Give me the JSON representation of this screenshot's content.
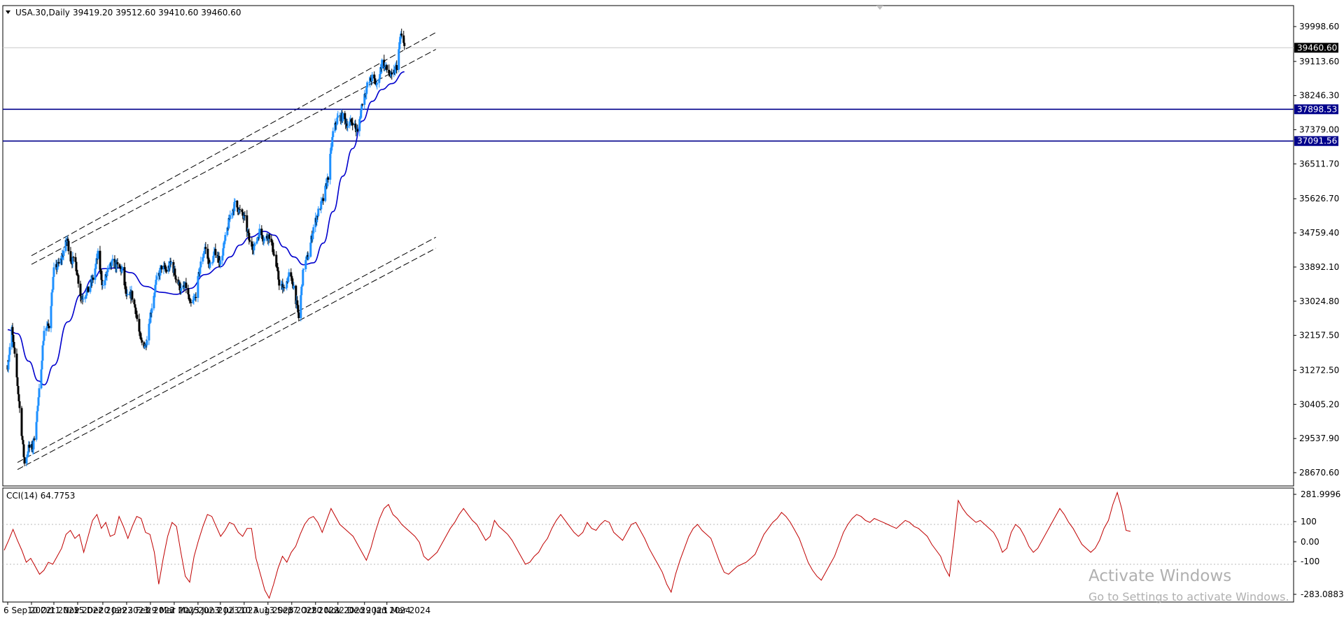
{
  "header": {
    "symbol": "USA.30,Daily",
    "ohlc": "39419.20 39512.60 39410.60 39460.60"
  },
  "indicator": {
    "label": "CCI(14) 64.7753",
    "ticks": [
      "281.9996",
      "100",
      "0.00",
      "-100",
      "-283.0883"
    ],
    "tick_values": [
      281.9996,
      100,
      0,
      -100,
      -283.0883
    ]
  },
  "watermark": {
    "line1": "Activate Windows",
    "line2": "Go to Settings to activate Windows."
  },
  "colors": {
    "bull_candle": "#1E90FF",
    "bear_candle": "#000000",
    "moving_average": "#0000CD",
    "horizontal_levels": "#00008B",
    "channel_lines": "#000000",
    "cci_line": "#C00000",
    "price_label_bg": "#000000"
  },
  "chart_data": {
    "type": "candlestick",
    "symbol": "USA.30",
    "timeframe": "Daily",
    "ylim": [
      28200,
      40600
    ],
    "y_ticks": [
      39998.6,
      39113.6,
      38246.3,
      37379.0,
      36511.7,
      35626.7,
      34759.4,
      33892.1,
      33024.8,
      32157.5,
      31272.5,
      30405.2,
      29537.9,
      28670.6
    ],
    "y_tick_labels": [
      "39998.60",
      "39113.60",
      "38246.30",
      "37379.00",
      "36511.70",
      "35626.70",
      "34759.40",
      "33892.10",
      "33024.80",
      "32157.50",
      "31272.50",
      "30405.20",
      "29537.90",
      "28670.60"
    ],
    "x_labels": [
      "6 Sep 2022",
      "10 Oct 2022",
      "11 Nov 2022",
      "15 Dec 2022",
      "20 Jan 2023",
      "23 Feb 2023",
      "29 Mar 2023",
      "2 May 2023",
      "5 Jun 2023",
      "7 Jul 2023",
      "10 Aug 2023",
      "13 Sep 2023",
      "17 Oct 2023",
      "20 Nov 2023",
      "22 Dec 2023",
      "29 Jan 2024",
      "1 Mar 2024"
    ],
    "current_price": 39460.6,
    "current_price_label": "39460.60",
    "horizontal_levels": [
      {
        "value": 37898.53,
        "label": "37898.53"
      },
      {
        "value": 37091.56,
        "label": "37091.56"
      }
    ],
    "close_path": [
      {
        "date": "2022-09-06",
        "close": 31400
      },
      {
        "date": "2022-09-12",
        "close": 32300
      },
      {
        "date": "2022-09-20",
        "close": 30900
      },
      {
        "date": "2022-09-30",
        "close": 28900
      },
      {
        "date": "2022-10-06",
        "close": 29300
      },
      {
        "date": "2022-10-12",
        "close": 29300
      },
      {
        "date": "2022-10-20",
        "close": 30500
      },
      {
        "date": "2022-10-28",
        "close": 32300
      },
      {
        "date": "2022-11-04",
        "close": 32400
      },
      {
        "date": "2022-11-11",
        "close": 33800
      },
      {
        "date": "2022-11-20",
        "close": 34000
      },
      {
        "date": "2022-11-30",
        "close": 34600
      },
      {
        "date": "2022-12-05",
        "close": 34100
      },
      {
        "date": "2022-12-12",
        "close": 34000
      },
      {
        "date": "2022-12-20",
        "close": 33100
      },
      {
        "date": "2022-12-30",
        "close": 33300
      },
      {
        "date": "2023-01-06",
        "close": 33600
      },
      {
        "date": "2023-01-13",
        "close": 34200
      },
      {
        "date": "2023-01-20",
        "close": 33400
      },
      {
        "date": "2023-01-27",
        "close": 33800
      },
      {
        "date": "2023-02-03",
        "close": 34000
      },
      {
        "date": "2023-02-10",
        "close": 33900
      },
      {
        "date": "2023-02-17",
        "close": 33800
      },
      {
        "date": "2023-02-23",
        "close": 33100
      },
      {
        "date": "2023-03-02",
        "close": 33200
      },
      {
        "date": "2023-03-08",
        "close": 32800
      },
      {
        "date": "2023-03-15",
        "close": 32000
      },
      {
        "date": "2023-03-22",
        "close": 31900
      },
      {
        "date": "2023-03-29",
        "close": 32700
      },
      {
        "date": "2023-04-06",
        "close": 33500
      },
      {
        "date": "2023-04-14",
        "close": 33900
      },
      {
        "date": "2023-04-21",
        "close": 33800
      },
      {
        "date": "2023-04-28",
        "close": 34000
      },
      {
        "date": "2023-05-05",
        "close": 33600
      },
      {
        "date": "2023-05-12",
        "close": 33300
      },
      {
        "date": "2023-05-19",
        "close": 33400
      },
      {
        "date": "2023-05-25",
        "close": 32900
      },
      {
        "date": "2023-06-01",
        "close": 33100
      },
      {
        "date": "2023-06-08",
        "close": 33900
      },
      {
        "date": "2023-06-15",
        "close": 34400
      },
      {
        "date": "2023-06-22",
        "close": 33900
      },
      {
        "date": "2023-06-30",
        "close": 34300
      },
      {
        "date": "2023-07-07",
        "close": 34000
      },
      {
        "date": "2023-07-14",
        "close": 34600
      },
      {
        "date": "2023-07-21",
        "close": 35200
      },
      {
        "date": "2023-07-28",
        "close": 35500
      },
      {
        "date": "2023-08-04",
        "close": 35300
      },
      {
        "date": "2023-08-11",
        "close": 35100
      },
      {
        "date": "2023-08-18",
        "close": 34500
      },
      {
        "date": "2023-08-25",
        "close": 34400
      },
      {
        "date": "2023-09-01",
        "close": 34800
      },
      {
        "date": "2023-09-08",
        "close": 34600
      },
      {
        "date": "2023-09-15",
        "close": 34700
      },
      {
        "date": "2023-09-22",
        "close": 34200
      },
      {
        "date": "2023-09-29",
        "close": 33500
      },
      {
        "date": "2023-10-06",
        "close": 33300
      },
      {
        "date": "2023-10-13",
        "close": 33700
      },
      {
        "date": "2023-10-20",
        "close": 33400
      },
      {
        "date": "2023-10-27",
        "close": 32600
      },
      {
        "date": "2023-11-03",
        "close": 33900
      },
      {
        "date": "2023-11-10",
        "close": 34200
      },
      {
        "date": "2023-11-17",
        "close": 34900
      },
      {
        "date": "2023-11-24",
        "close": 35300
      },
      {
        "date": "2023-12-01",
        "close": 35600
      },
      {
        "date": "2023-12-08",
        "close": 36200
      },
      {
        "date": "2023-12-15",
        "close": 37300
      },
      {
        "date": "2023-12-22",
        "close": 37700
      },
      {
        "date": "2023-12-29",
        "close": 37700
      },
      {
        "date": "2024-01-05",
        "close": 37500
      },
      {
        "date": "2024-01-12",
        "close": 37600
      },
      {
        "date": "2024-01-19",
        "close": 37300
      },
      {
        "date": "2024-01-26",
        "close": 38100
      },
      {
        "date": "2024-02-02",
        "close": 38500
      },
      {
        "date": "2024-02-09",
        "close": 38700
      },
      {
        "date": "2024-02-16",
        "close": 38500
      },
      {
        "date": "2024-02-23",
        "close": 39100
      },
      {
        "date": "2024-03-01",
        "close": 38900
      },
      {
        "date": "2024-03-08",
        "close": 38700
      },
      {
        "date": "2024-03-15",
        "close": 39000
      },
      {
        "date": "2024-03-21",
        "close": 39800
      },
      {
        "date": "2024-03-26",
        "close": 39460
      }
    ],
    "moving_average": [
      {
        "date": "2022-09-06",
        "value": 32300
      },
      {
        "date": "2022-09-20",
        "value": 32200
      },
      {
        "date": "2022-10-06",
        "value": 31500
      },
      {
        "date": "2022-10-20",
        "value": 31000
      },
      {
        "date": "2022-10-28",
        "value": 30900
      },
      {
        "date": "2022-11-11",
        "value": 31400
      },
      {
        "date": "2022-12-01",
        "value": 32500
      },
      {
        "date": "2022-12-20",
        "value": 33200
      },
      {
        "date": "2023-01-06",
        "value": 33600
      },
      {
        "date": "2023-01-20",
        "value": 33850
      },
      {
        "date": "2023-02-10",
        "value": 33870
      },
      {
        "date": "2023-03-01",
        "value": 33750
      },
      {
        "date": "2023-03-22",
        "value": 33400
      },
      {
        "date": "2023-04-14",
        "value": 33250
      },
      {
        "date": "2023-05-05",
        "value": 33200
      },
      {
        "date": "2023-05-25",
        "value": 33350
      },
      {
        "date": "2023-06-15",
        "value": 33700
      },
      {
        "date": "2023-07-07",
        "value": 33900
      },
      {
        "date": "2023-07-21",
        "value": 34150
      },
      {
        "date": "2023-08-04",
        "value": 34450
      },
      {
        "date": "2023-08-18",
        "value": 34650
      },
      {
        "date": "2023-09-08",
        "value": 34800
      },
      {
        "date": "2023-09-22",
        "value": 34700
      },
      {
        "date": "2023-10-06",
        "value": 34400
      },
      {
        "date": "2023-10-20",
        "value": 34150
      },
      {
        "date": "2023-11-03",
        "value": 33950
      },
      {
        "date": "2023-11-17",
        "value": 34000
      },
      {
        "date": "2023-12-01",
        "value": 34500
      },
      {
        "date": "2023-12-15",
        "value": 35300
      },
      {
        "date": "2023-12-29",
        "value": 36200
      },
      {
        "date": "2024-01-12",
        "value": 36900
      },
      {
        "date": "2024-01-26",
        "value": 37600
      },
      {
        "date": "2024-02-09",
        "value": 38100
      },
      {
        "date": "2024-02-23",
        "value": 38400
      },
      {
        "date": "2024-03-08",
        "value": 38550
      },
      {
        "date": "2024-03-26",
        "value": 38850
      }
    ],
    "channel_lines": [
      {
        "start": {
          "date": "2022-10-10",
          "value": 34180
        },
        "end": {
          "date": "2024-05-10",
          "value": 39850
        }
      },
      {
        "start": {
          "date": "2022-10-10",
          "value": 33960
        },
        "end": {
          "date": "2024-05-10",
          "value": 39420
        }
      },
      {
        "start": {
          "date": "2022-09-20",
          "value": 28930
        },
        "end": {
          "date": "2024-05-10",
          "value": 34650
        }
      },
      {
        "start": {
          "date": "2022-09-20",
          "value": 28750
        },
        "end": {
          "date": "2024-05-10",
          "value": 34370
        }
      }
    ],
    "cci": {
      "ylim": [
        -283.0883,
        281.9996
      ],
      "values": [
        -30,
        20,
        75,
        20,
        -30,
        -90,
        -70,
        -110,
        -150,
        -130,
        -90,
        -100,
        -60,
        -20,
        50,
        70,
        30,
        50,
        -40,
        40,
        120,
        150,
        80,
        110,
        40,
        50,
        140,
        90,
        30,
        90,
        140,
        130,
        60,
        50,
        -40,
        -200,
        -70,
        40,
        110,
        90,
        -40,
        -160,
        -190,
        -60,
        20,
        90,
        150,
        140,
        90,
        40,
        70,
        110,
        100,
        60,
        40,
        80,
        80,
        -70,
        -150,
        -230,
        -270,
        -200,
        -120,
        -60,
        -90,
        -40,
        -10,
        50,
        100,
        130,
        140,
        110,
        60,
        120,
        180,
        140,
        100,
        80,
        60,
        40,
        0,
        -40,
        -80,
        -20,
        60,
        130,
        180,
        200,
        150,
        130,
        100,
        80,
        60,
        40,
        10,
        -60,
        -80,
        -60,
        -40,
        0,
        40,
        80,
        110,
        150,
        180,
        150,
        120,
        100,
        60,
        20,
        40,
        120,
        90,
        70,
        50,
        20,
        -20,
        -60,
        -100,
        -90,
        -60,
        -40,
        0,
        30,
        80,
        120,
        150,
        120,
        90,
        60,
        40,
        60,
        110,
        80,
        70,
        100,
        120,
        110,
        60,
        40,
        20,
        60,
        100,
        110,
        70,
        30,
        -20,
        -60,
        -100,
        -140,
        -200,
        -240,
        -150,
        -80,
        -20,
        40,
        80,
        100,
        70,
        50,
        30,
        -30,
        -90,
        -140,
        -150,
        -130,
        -110,
        -100,
        -90,
        -70,
        -50,
        0,
        50,
        80,
        110,
        130,
        160,
        140,
        110,
        70,
        30,
        -30,
        -90,
        -130,
        -160,
        -180,
        -140,
        -100,
        -60,
        0,
        60,
        100,
        130,
        150,
        140,
        120,
        110,
        130,
        120,
        110,
        100,
        90,
        80,
        100,
        120,
        110,
        90,
        80,
        60,
        40,
        0,
        -30,
        -60,
        -120,
        -160,
        20,
        220,
        180,
        150,
        130,
        110,
        120,
        100,
        80,
        60,
        20,
        -40,
        -20,
        60,
        100,
        80,
        40,
        -10,
        -40,
        -20,
        20,
        60,
        100,
        140,
        180,
        150,
        110,
        80,
        40,
        0,
        -20,
        -40,
        -20,
        20,
        80,
        120,
        200,
        260,
        180,
        70,
        65
      ]
    }
  }
}
